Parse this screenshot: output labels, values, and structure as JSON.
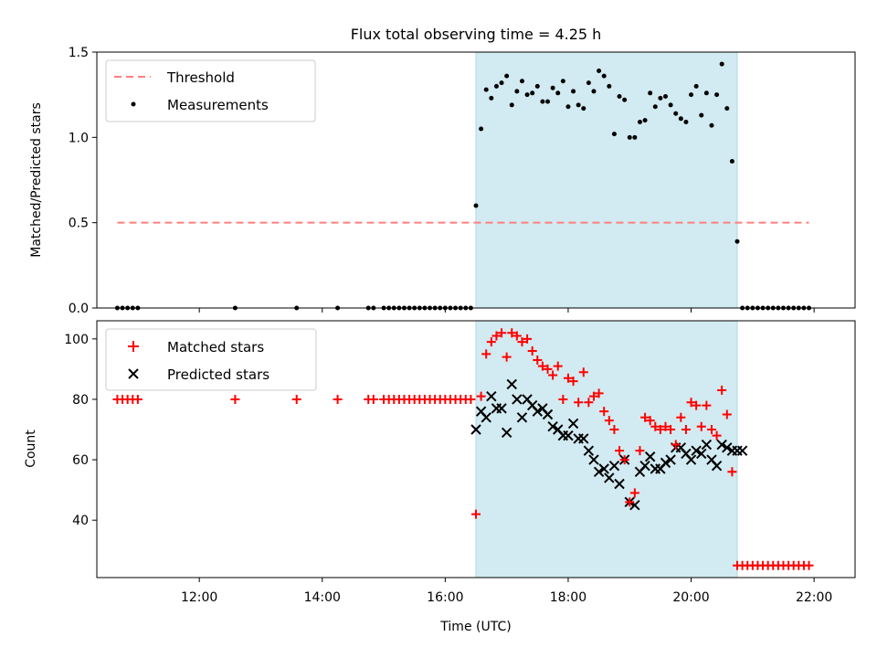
{
  "chart_data": [
    {
      "type": "scatter",
      "title": "Flux total observing time = 4.25 h",
      "ylabel": "Matched/Predicted stars",
      "xlabel": "",
      "xlim": [
        "10:20",
        "22:40"
      ],
      "ylim": [
        0,
        1.5
      ],
      "yticks": [
        "0.0",
        "0.5",
        "1.0",
        "1.5"
      ],
      "grid": false,
      "legend_position": "top-left",
      "shaded_span": [
        "16:30",
        "20:45"
      ],
      "shaded_color": "#add8e6",
      "threshold": {
        "name": "Threshold",
        "value": 0.5,
        "x_range": [
          "10:40",
          "21:55"
        ],
        "color": "#ff7f7f",
        "style": "dashed"
      },
      "series": [
        {
          "name": "Measurements",
          "color": "#000000",
          "marker": "dot",
          "x": [
            "10:40",
            "10:45",
            "10:50",
            "10:55",
            "11:00",
            "12:35",
            "13:35",
            "14:15",
            "14:45",
            "14:50",
            "15:00",
            "15:05",
            "15:10",
            "15:15",
            "15:20",
            "15:25",
            "15:30",
            "15:35",
            "15:40",
            "15:45",
            "15:50",
            "15:55",
            "16:00",
            "16:05",
            "16:10",
            "16:15",
            "16:20",
            "16:25",
            "16:30",
            "16:35",
            "16:40",
            "16:45",
            "16:50",
            "16:55",
            "17:00",
            "17:05",
            "17:10",
            "17:15",
            "17:20",
            "17:25",
            "17:30",
            "17:35",
            "17:40",
            "17:45",
            "17:50",
            "17:55",
            "18:00",
            "18:05",
            "18:10",
            "18:15",
            "18:20",
            "18:25",
            "18:30",
            "18:35",
            "18:40",
            "18:45",
            "18:50",
            "18:55",
            "19:00",
            "19:05",
            "19:10",
            "19:15",
            "19:20",
            "19:25",
            "19:30",
            "19:35",
            "19:40",
            "19:45",
            "19:50",
            "19:55",
            "20:00",
            "20:05",
            "20:10",
            "20:15",
            "20:20",
            "20:25",
            "20:30",
            "20:35",
            "20:40",
            "20:45",
            "20:50",
            "20:55",
            "21:00",
            "21:05",
            "21:10",
            "21:15",
            "21:20",
            "21:25",
            "21:30",
            "21:35",
            "21:40",
            "21:45",
            "21:50",
            "21:55"
          ],
          "y": [
            0,
            0,
            0,
            0,
            0,
            0,
            0,
            0,
            0,
            0,
            0,
            0,
            0,
            0,
            0,
            0,
            0,
            0,
            0,
            0,
            0,
            0,
            0,
            0,
            0,
            0,
            0,
            0,
            0.6,
            1.05,
            1.28,
            1.23,
            1.3,
            1.32,
            1.36,
            1.19,
            1.27,
            1.33,
            1.25,
            1.26,
            1.3,
            1.21,
            1.21,
            1.29,
            1.26,
            1.33,
            1.18,
            1.27,
            1.19,
            1.17,
            1.32,
            1.27,
            1.39,
            1.36,
            1.3,
            1.02,
            1.24,
            1.22,
            1.0,
            1.0,
            1.09,
            1.1,
            1.26,
            1.18,
            1.23,
            1.24,
            1.19,
            1.14,
            1.11,
            1.09,
            1.25,
            1.3,
            1.13,
            1.26,
            1.07,
            1.25,
            1.43,
            1.17,
            0.86,
            0.39,
            0,
            0,
            0,
            0,
            0,
            0,
            0,
            0,
            0,
            0,
            0,
            0,
            0,
            0
          ]
        }
      ]
    },
    {
      "type": "scatter",
      "title": "",
      "ylabel": "Count",
      "xlabel": "Time (UTC)",
      "xlim": [
        "10:20",
        "22:40"
      ],
      "ylim": [
        21,
        106
      ],
      "xticks": [
        "12:00",
        "14:00",
        "16:00",
        "18:00",
        "20:00",
        "22:00"
      ],
      "yticks": [
        "40",
        "60",
        "80",
        "100"
      ],
      "grid": false,
      "legend_position": "top-left",
      "shaded_span": [
        "16:30",
        "20:45"
      ],
      "shaded_color": "#add8e6",
      "series": [
        {
          "name": "Matched stars",
          "color": "#ff0000",
          "marker": "plus",
          "x": [
            "10:40",
            "10:45",
            "10:50",
            "10:55",
            "11:00",
            "12:35",
            "13:35",
            "14:15",
            "14:45",
            "14:50",
            "15:00",
            "15:05",
            "15:10",
            "15:15",
            "15:20",
            "15:25",
            "15:30",
            "15:35",
            "15:40",
            "15:45",
            "15:50",
            "15:55",
            "16:00",
            "16:05",
            "16:10",
            "16:15",
            "16:20",
            "16:25",
            "16:30",
            "16:35",
            "16:40",
            "16:45",
            "16:50",
            "16:55",
            "17:00",
            "17:05",
            "17:10",
            "17:15",
            "17:20",
            "17:25",
            "17:30",
            "17:35",
            "17:40",
            "17:45",
            "17:50",
            "17:55",
            "18:00",
            "18:05",
            "18:10",
            "18:15",
            "18:20",
            "18:25",
            "18:30",
            "18:35",
            "18:40",
            "18:45",
            "18:50",
            "18:55",
            "19:00",
            "19:05",
            "19:10",
            "19:15",
            "19:20",
            "19:25",
            "19:30",
            "19:35",
            "19:40",
            "19:45",
            "19:50",
            "19:55",
            "20:00",
            "20:05",
            "20:10",
            "20:15",
            "20:20",
            "20:25",
            "20:30",
            "20:35",
            "20:40",
            "20:45",
            "20:50",
            "20:55",
            "21:00",
            "21:05",
            "21:10",
            "21:15",
            "21:20",
            "21:25",
            "21:30",
            "21:35",
            "21:40",
            "21:45",
            "21:50",
            "21:55"
          ],
          "y": [
            80,
            80,
            80,
            80,
            80,
            80,
            80,
            80,
            80,
            80,
            80,
            80,
            80,
            80,
            80,
            80,
            80,
            80,
            80,
            80,
            80,
            80,
            80,
            80,
            80,
            80,
            80,
            80,
            42,
            81,
            95,
            99,
            101,
            102,
            94,
            102,
            101,
            99,
            100,
            96,
            93,
            91,
            90,
            88,
            91,
            80,
            87,
            86,
            79,
            89,
            79,
            81,
            82,
            76,
            73,
            70,
            63,
            60,
            46,
            49,
            63,
            74,
            73,
            71,
            70,
            71,
            70,
            65,
            74,
            70,
            79,
            78,
            71,
            78,
            70,
            68,
            83,
            75,
            56,
            25,
            25,
            25,
            25,
            25,
            25,
            25,
            25,
            25,
            25,
            25,
            25,
            25,
            25,
            25
          ]
        },
        {
          "name": "Predicted stars",
          "color": "#000000",
          "marker": "x",
          "x": [
            "16:30",
            "16:35",
            "16:40",
            "16:45",
            "16:50",
            "16:55",
            "17:00",
            "17:05",
            "17:10",
            "17:15",
            "17:20",
            "17:25",
            "17:30",
            "17:35",
            "17:40",
            "17:45",
            "17:50",
            "17:55",
            "18:00",
            "18:05",
            "18:10",
            "18:15",
            "18:20",
            "18:25",
            "18:30",
            "18:35",
            "18:40",
            "18:45",
            "18:50",
            "18:55",
            "19:00",
            "19:05",
            "19:10",
            "19:15",
            "19:20",
            "19:25",
            "19:30",
            "19:35",
            "19:40",
            "19:45",
            "19:50",
            "19:55",
            "20:00",
            "20:05",
            "20:10",
            "20:15",
            "20:20",
            "20:25",
            "20:30",
            "20:35",
            "20:40",
            "20:45",
            "20:50"
          ],
          "y": [
            70,
            76,
            74,
            81,
            77,
            77,
            69,
            85,
            80,
            74,
            80,
            78,
            76,
            77,
            75,
            71,
            70,
            68,
            68,
            72,
            67,
            67,
            63,
            60,
            56,
            57,
            54,
            58,
            52,
            60,
            46,
            45,
            56,
            58,
            61,
            57,
            57,
            59,
            60,
            64,
            64,
            62,
            60,
            63,
            62,
            65,
            60,
            58,
            65,
            64,
            63,
            63,
            63
          ]
        }
      ]
    }
  ]
}
